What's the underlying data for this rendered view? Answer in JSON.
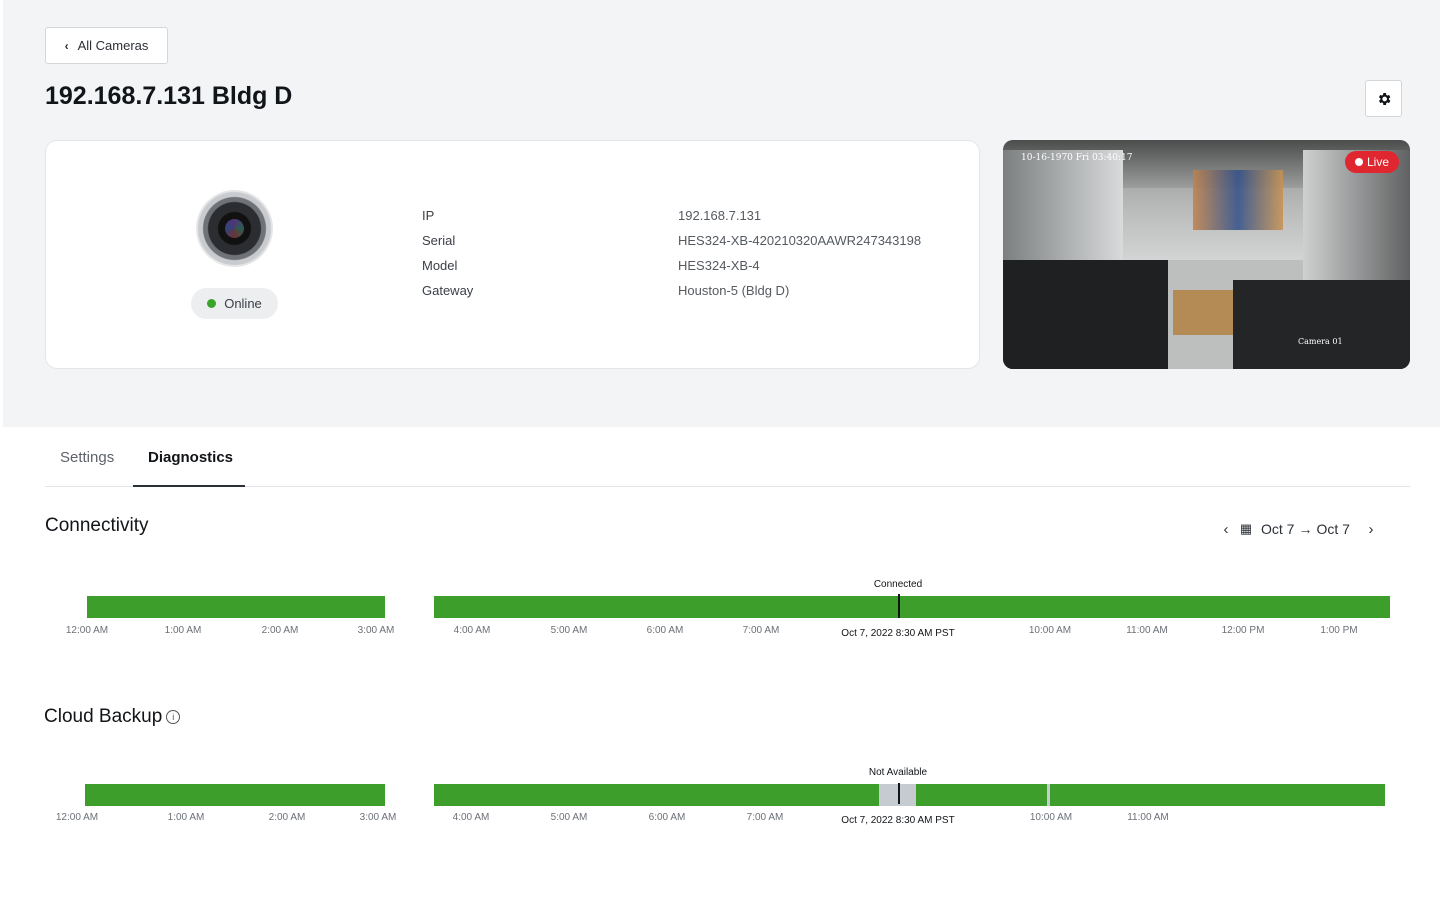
{
  "header": {
    "back_label": "All Cameras",
    "title": "192.168.7.131 Bldg D"
  },
  "camera": {
    "status": "Online",
    "status_color": "#3aa52b",
    "fields": [
      {
        "label": "IP",
        "value": "192.168.7.131"
      },
      {
        "label": "Serial",
        "value": "HES324-XB-420210320AAWR247343198"
      },
      {
        "label": "Model",
        "value": "HES324-XB-4"
      },
      {
        "label": "Gateway",
        "value": "Houston-5 (Bldg D)"
      }
    ]
  },
  "live_view": {
    "badge": "Live",
    "timestamp": "10-16-1970 Fri 03:40:17",
    "camera_label": "Camera 01",
    "badge_color": "#e0262e"
  },
  "tabs": {
    "settings": "Settings",
    "diagnostics": "Diagnostics",
    "active": "diagnostics"
  },
  "date_range": {
    "from": "Oct 7",
    "to": "Oct 7"
  },
  "connectivity": {
    "title": "Connectivity",
    "marker_caption": "Connected",
    "now_label": "Oct 7, 2022 8:30 AM PST",
    "ticks": [
      "12:00 AM",
      "1:00 AM",
      "2:00 AM",
      "3:00 AM",
      "4:00 AM",
      "5:00 AM",
      "6:00 AM",
      "7:00 AM",
      "10:00 AM",
      "11:00 AM",
      "12:00 PM",
      "1:00 PM"
    ],
    "bar_color": "#3d9e2c"
  },
  "cloud_backup": {
    "title": "Cloud Backup",
    "marker_caption": "Not Available",
    "now_label": "Oct 7, 2022 8:30 AM PST",
    "ticks": [
      "12:00 AM",
      "1:00 AM",
      "2:00 AM",
      "3:00 AM",
      "4:00 AM",
      "5:00 AM",
      "6:00 AM",
      "7:00 AM",
      "10:00 AM",
      "11:00 AM"
    ],
    "bar_color": "#3d9e2c",
    "gap_color": "#c5cbd1"
  }
}
